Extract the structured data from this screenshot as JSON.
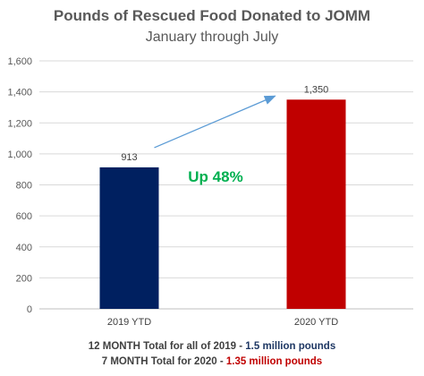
{
  "chart_data": {
    "type": "bar",
    "title": "Pounds of Rescued Food Donated to JOMM",
    "subtitle": "January through July",
    "categories": [
      "2019 YTD",
      "2020 YTD"
    ],
    "values": [
      913,
      1350
    ],
    "data_labels": [
      "913",
      "1,350"
    ],
    "colors": [
      "#002060",
      "#c00000"
    ],
    "ylim": [
      0,
      1600
    ],
    "yticks": [
      0,
      200,
      400,
      600,
      800,
      1000,
      1200,
      1400,
      1600
    ],
    "ytick_labels": [
      "0",
      "200",
      "400",
      "600",
      "800",
      "1,000",
      "1,200",
      "1,400",
      "1,600"
    ],
    "grid": true,
    "legend": "none",
    "annotation": {
      "text": "Up 48%",
      "color": "#00b050"
    },
    "arrow_color": "#5b9bd5"
  },
  "footer": {
    "line1_prefix": "12 MONTH Total for all of 2019 - ",
    "line1_highlight": "1.5 million pounds",
    "line2_prefix": "7 MONTH Total for 2020 - ",
    "line2_highlight": "1.35 million pounds"
  }
}
